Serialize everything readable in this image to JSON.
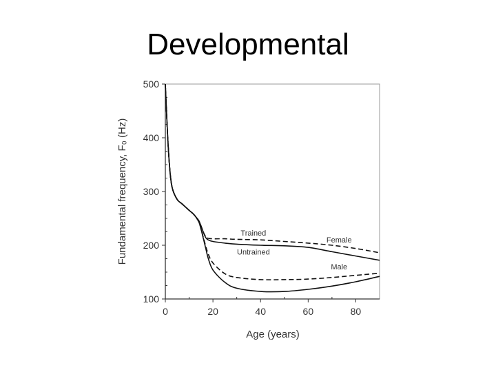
{
  "slide": {
    "title": "Developmental"
  },
  "chart_data": {
    "type": "line",
    "title": "",
    "xlabel": "Age (years)",
    "ylabel": "Fundamental frequency, F₀ (Hz)",
    "xlim": [
      0,
      90
    ],
    "ylim": [
      100,
      500
    ],
    "xticks": [
      0,
      20,
      40,
      60,
      80
    ],
    "yticks": [
      100,
      200,
      300,
      400,
      500
    ],
    "grid": false,
    "legend": "none",
    "series": [
      {
        "name": "",
        "style": "dashed",
        "x": [
          0,
          1,
          2,
          3,
          5,
          7,
          10,
          12,
          14,
          15,
          16,
          17,
          18,
          20,
          25,
          30,
          40,
          50,
          60,
          70,
          80,
          90
        ],
        "y": [
          500,
          400,
          335,
          305,
          285,
          277,
          265,
          257,
          246,
          236,
          224,
          216,
          213,
          212,
          212,
          211,
          210,
          207,
          204,
          200,
          194,
          186
        ]
      },
      {
        "name": "",
        "style": "solid",
        "x": [
          0,
          1,
          2,
          3,
          5,
          7,
          10,
          12,
          14,
          15,
          16,
          17,
          18,
          20,
          25,
          30,
          40,
          50,
          60,
          70,
          80,
          90
        ],
        "y": [
          500,
          400,
          335,
          305,
          285,
          277,
          265,
          257,
          246,
          236,
          224,
          214,
          210,
          207,
          204,
          202,
          200,
          199,
          196,
          188,
          180,
          172
        ]
      },
      {
        "name": "",
        "style": "dashed",
        "x": [
          0,
          1,
          2,
          3,
          5,
          7,
          10,
          12,
          14,
          15,
          16,
          17,
          18,
          20,
          25,
          30,
          40,
          50,
          60,
          70,
          80,
          90
        ],
        "y": [
          500,
          400,
          335,
          305,
          285,
          277,
          265,
          257,
          244,
          230,
          214,
          198,
          184,
          167,
          147,
          140,
          136,
          136,
          137,
          140,
          144,
          148
        ]
      },
      {
        "name": "",
        "style": "solid",
        "x": [
          0,
          1,
          2,
          3,
          5,
          7,
          10,
          12,
          14,
          15,
          16,
          17,
          18,
          20,
          25,
          30,
          40,
          50,
          60,
          70,
          80,
          90
        ],
        "y": [
          500,
          400,
          335,
          305,
          285,
          277,
          265,
          257,
          244,
          230,
          212,
          194,
          176,
          154,
          131,
          120,
          114,
          114,
          118,
          124,
          132,
          142
        ]
      }
    ],
    "annotations": [
      {
        "text": "Trained",
        "x": 37,
        "y": 218
      },
      {
        "text": "Female",
        "x": 73,
        "y": 205
      },
      {
        "text": "Untrained",
        "x": 37,
        "y": 183
      },
      {
        "text": "Male",
        "x": 73,
        "y": 155
      }
    ]
  }
}
